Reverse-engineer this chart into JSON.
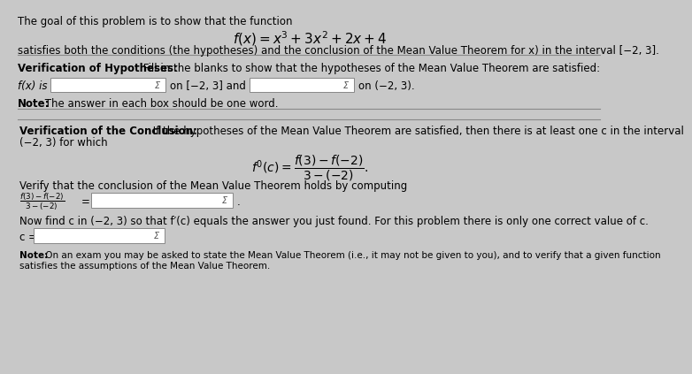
{
  "bg_color": "#c8c8c8",
  "text_color": "#000000",
  "title_line1": "The goal of this problem is to show that the function",
  "title_line2": "satisfies both the conditions (the hypotheses) and the conclusion of the Mean Value Theorem for x) in the interval [-2, 3].",
  "box_color": "#ffffff",
  "box_border": "#888888",
  "sigma_color": "#555555",
  "line_color": "#888888",
  "font_size_main": 8.5,
  "font_size_formula": 10,
  "font_size_note": 7.5
}
